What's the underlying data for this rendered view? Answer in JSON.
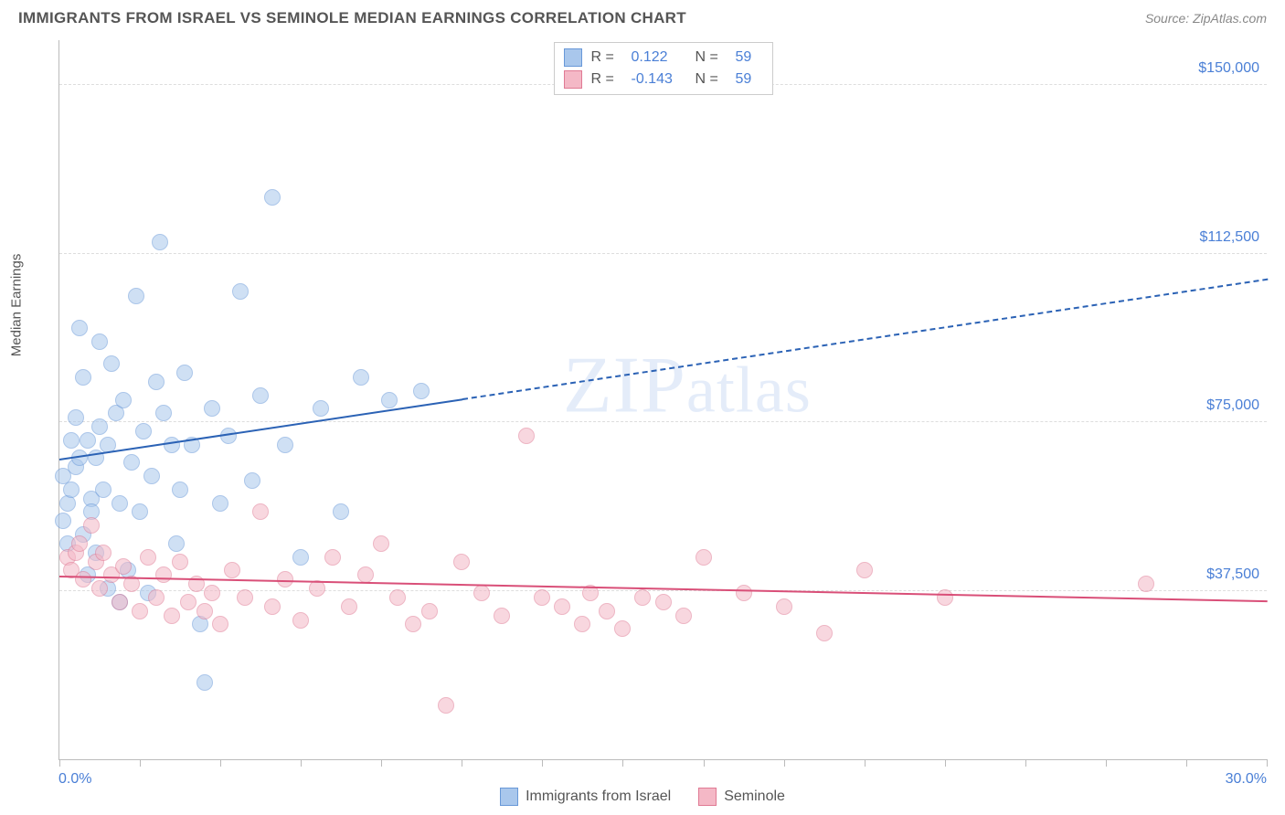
{
  "header": {
    "title": "IMMIGRANTS FROM ISRAEL VS SEMINOLE MEDIAN EARNINGS CORRELATION CHART",
    "source": "Source: ZipAtlas.com"
  },
  "watermark": {
    "prefix": "ZIP",
    "suffix": "atlas"
  },
  "chart": {
    "type": "scatter",
    "ylabel": "Median Earnings",
    "xlim": [
      0,
      30
    ],
    "ylim": [
      0,
      160000
    ],
    "xunit": "%",
    "xaxis": {
      "min_label": "0.0%",
      "max_label": "30.0%",
      "ticks_pct": [
        0,
        2,
        4,
        6,
        8,
        10,
        12,
        14,
        16,
        18,
        20,
        22,
        24,
        26,
        28,
        30
      ]
    },
    "yaxis": {
      "gridlines": [
        {
          "y": 37500,
          "label": "$37,500"
        },
        {
          "y": 75000,
          "label": "$75,000"
        },
        {
          "y": 112500,
          "label": "$112,500"
        },
        {
          "y": 150000,
          "label": "$150,000"
        }
      ]
    },
    "grid_color": "#dddddd",
    "axis_color": "#bbbbbb",
    "background_color": "#ffffff",
    "series": [
      {
        "id": "israel",
        "name": "Immigrants from Israel",
        "fill": "#a9c7ec",
        "stroke": "#6898d8",
        "trend_color": "#2b62b5",
        "marker_radius": 9,
        "fill_opacity": 0.55,
        "R": "0.122",
        "N": "59",
        "trend": {
          "x1": 0,
          "y1": 67000,
          "x2": 30,
          "y2": 107000,
          "solid_until_x": 10
        },
        "points": [
          [
            0.1,
            53000
          ],
          [
            0.1,
            63000
          ],
          [
            0.2,
            57000
          ],
          [
            0.2,
            48000
          ],
          [
            0.3,
            71000
          ],
          [
            0.3,
            60000
          ],
          [
            0.4,
            65000
          ],
          [
            0.4,
            76000
          ],
          [
            0.5,
            96000
          ],
          [
            0.5,
            67000
          ],
          [
            0.6,
            50000
          ],
          [
            0.6,
            85000
          ],
          [
            0.7,
            41000
          ],
          [
            0.7,
            71000
          ],
          [
            0.8,
            58000
          ],
          [
            0.8,
            55000
          ],
          [
            0.9,
            67000
          ],
          [
            0.9,
            46000
          ],
          [
            1.0,
            74000
          ],
          [
            1.0,
            93000
          ],
          [
            1.1,
            60000
          ],
          [
            1.2,
            70000
          ],
          [
            1.2,
            38000
          ],
          [
            1.3,
            88000
          ],
          [
            1.4,
            77000
          ],
          [
            1.5,
            57000
          ],
          [
            1.5,
            35000
          ],
          [
            1.6,
            80000
          ],
          [
            1.7,
            42000
          ],
          [
            1.8,
            66000
          ],
          [
            1.9,
            103000
          ],
          [
            2.0,
            55000
          ],
          [
            2.1,
            73000
          ],
          [
            2.2,
            37000
          ],
          [
            2.3,
            63000
          ],
          [
            2.4,
            84000
          ],
          [
            2.5,
            115000
          ],
          [
            2.6,
            77000
          ],
          [
            2.8,
            70000
          ],
          [
            2.9,
            48000
          ],
          [
            3.0,
            60000
          ],
          [
            3.1,
            86000
          ],
          [
            3.3,
            70000
          ],
          [
            3.5,
            30000
          ],
          [
            3.6,
            17000
          ],
          [
            3.8,
            78000
          ],
          [
            4.0,
            57000
          ],
          [
            4.2,
            72000
          ],
          [
            4.5,
            104000
          ],
          [
            4.8,
            62000
          ],
          [
            5.0,
            81000
          ],
          [
            5.3,
            125000
          ],
          [
            5.6,
            70000
          ],
          [
            6.0,
            45000
          ],
          [
            6.5,
            78000
          ],
          [
            7.0,
            55000
          ],
          [
            7.5,
            85000
          ],
          [
            8.2,
            80000
          ],
          [
            9.0,
            82000
          ]
        ]
      },
      {
        "id": "seminole",
        "name": "Seminole",
        "fill": "#f4b8c6",
        "stroke": "#e07a94",
        "trend_color": "#d94f78",
        "marker_radius": 9,
        "fill_opacity": 0.55,
        "R": "-0.143",
        "N": "59",
        "trend": {
          "x1": 0,
          "y1": 41000,
          "x2": 30,
          "y2": 35500,
          "solid_until_x": 30
        },
        "points": [
          [
            0.2,
            45000
          ],
          [
            0.3,
            42000
          ],
          [
            0.4,
            46000
          ],
          [
            0.5,
            48000
          ],
          [
            0.6,
            40000
          ],
          [
            0.8,
            52000
          ],
          [
            0.9,
            44000
          ],
          [
            1.0,
            38000
          ],
          [
            1.1,
            46000
          ],
          [
            1.3,
            41000
          ],
          [
            1.5,
            35000
          ],
          [
            1.6,
            43000
          ],
          [
            1.8,
            39000
          ],
          [
            2.0,
            33000
          ],
          [
            2.2,
            45000
          ],
          [
            2.4,
            36000
          ],
          [
            2.6,
            41000
          ],
          [
            2.8,
            32000
          ],
          [
            3.0,
            44000
          ],
          [
            3.2,
            35000
          ],
          [
            3.4,
            39000
          ],
          [
            3.6,
            33000
          ],
          [
            3.8,
            37000
          ],
          [
            4.0,
            30000
          ],
          [
            4.3,
            42000
          ],
          [
            4.6,
            36000
          ],
          [
            5.0,
            55000
          ],
          [
            5.3,
            34000
          ],
          [
            5.6,
            40000
          ],
          [
            6.0,
            31000
          ],
          [
            6.4,
            38000
          ],
          [
            6.8,
            45000
          ],
          [
            7.2,
            34000
          ],
          [
            7.6,
            41000
          ],
          [
            8.0,
            48000
          ],
          [
            8.4,
            36000
          ],
          [
            8.8,
            30000
          ],
          [
            9.2,
            33000
          ],
          [
            9.6,
            12000
          ],
          [
            10.0,
            44000
          ],
          [
            10.5,
            37000
          ],
          [
            11.0,
            32000
          ],
          [
            11.6,
            72000
          ],
          [
            12.0,
            36000
          ],
          [
            12.5,
            34000
          ],
          [
            13.0,
            30000
          ],
          [
            13.2,
            37000
          ],
          [
            13.6,
            33000
          ],
          [
            14.0,
            29000
          ],
          [
            14.5,
            36000
          ],
          [
            15.0,
            35000
          ],
          [
            15.5,
            32000
          ],
          [
            16.0,
            45000
          ],
          [
            17.0,
            37000
          ],
          [
            18.0,
            34000
          ],
          [
            19.0,
            28000
          ],
          [
            20.0,
            42000
          ],
          [
            22.0,
            36000
          ],
          [
            27.0,
            39000
          ]
        ]
      }
    ],
    "legend_top_labels": {
      "R": "R =",
      "N": "N ="
    }
  },
  "legend_bottom": [
    {
      "swatch_fill": "#a9c7ec",
      "swatch_stroke": "#6898d8",
      "label": "Immigrants from Israel"
    },
    {
      "swatch_fill": "#f4b8c6",
      "swatch_stroke": "#e07a94",
      "label": "Seminole"
    }
  ]
}
